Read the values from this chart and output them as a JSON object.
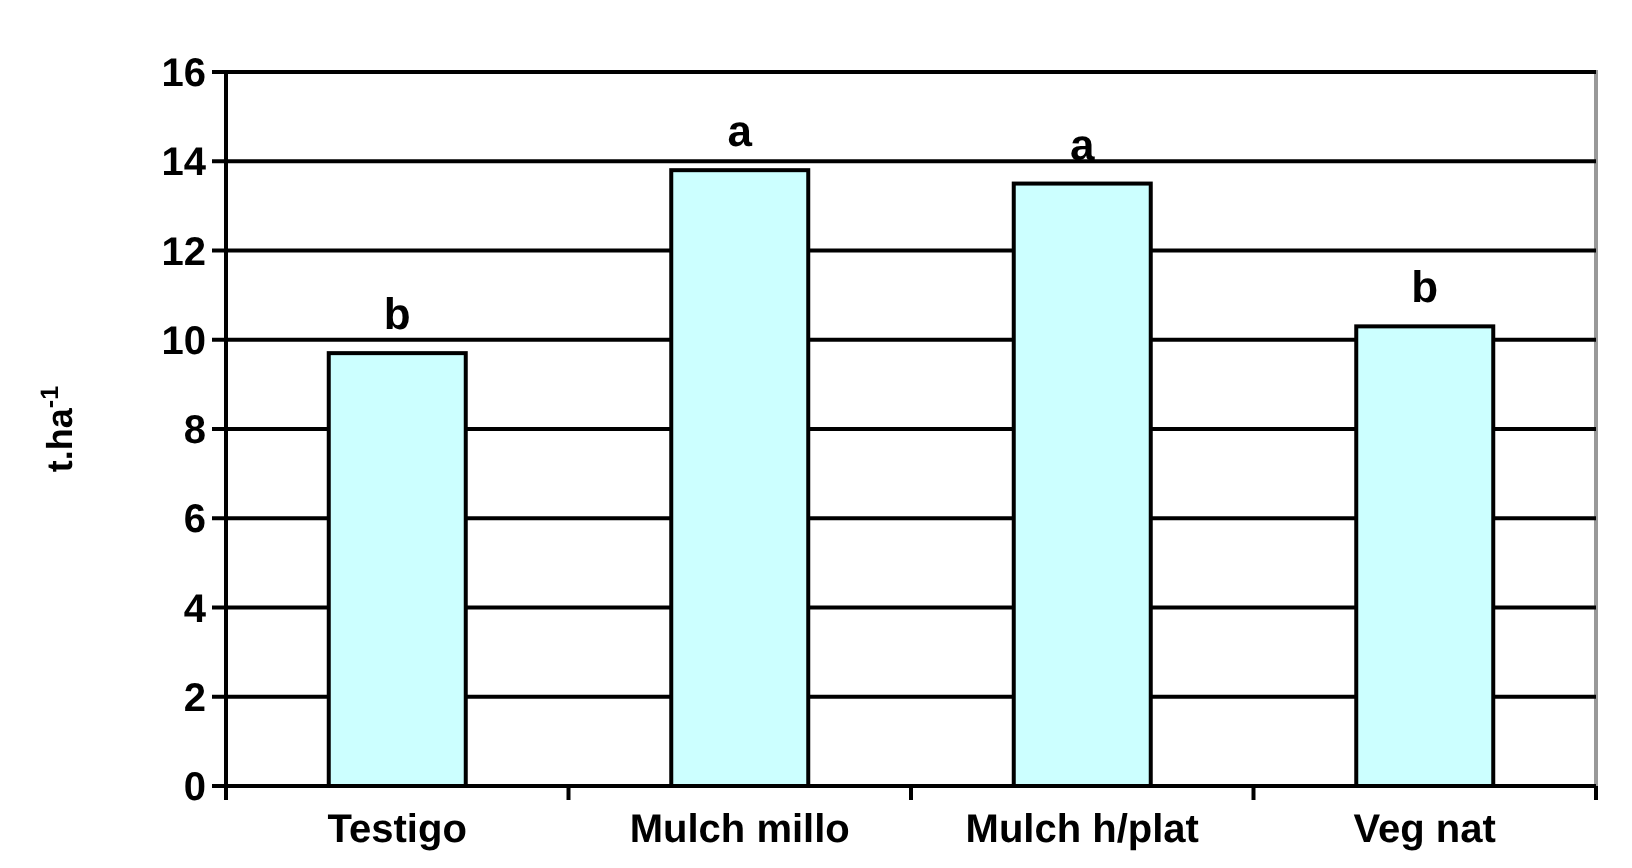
{
  "chart_data": {
    "type": "bar",
    "ylabel": "t.ha$^{-1}$",
    "categories": [
      "Testigo",
      "Mulch millo",
      "Mulch h/plat",
      "Veg nat"
    ],
    "values": [
      9.7,
      13.8,
      13.5,
      10.3
    ],
    "color": "#ccffff",
    "ylim": [
      0,
      16
    ],
    "yticks": [
      0,
      2,
      4,
      6,
      8,
      10,
      12,
      14,
      16
    ],
    "grid": "y",
    "annotations": [
      {
        "text": "b",
        "x": "Testigo",
        "y": 9.7
      },
      {
        "text": "a",
        "x": "Mulch millo",
        "y": 13.8
      },
      {
        "text": "a",
        "x": "Mulch h/plat",
        "y": 13.5
      },
      {
        "text": "b",
        "x": "Veg nat",
        "y": 10.3
      }
    ]
  }
}
